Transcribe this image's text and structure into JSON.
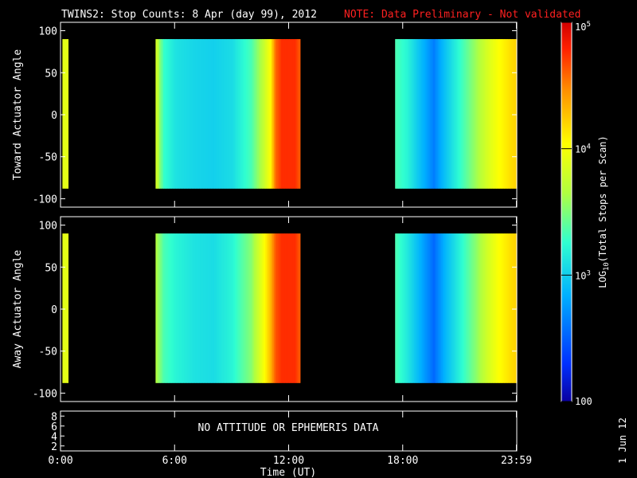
{
  "header": {
    "title": "TWINS2: Stop Counts:  8 Apr (day  99), 2012",
    "note": "NOTE: Data Preliminary - Not validated"
  },
  "footer": {
    "date_stamp": "1 Jun 12"
  },
  "colors": {
    "background": "#000000",
    "axes": "#ffffff",
    "note": "#ff2020",
    "colormap": [
      "#0a00a0",
      "#0030ff",
      "#00b0ff",
      "#30ffd0",
      "#b0ff40",
      "#ffff00",
      "#ff9000",
      "#ff2000",
      "#d00000"
    ]
  },
  "chart_data": [
    {
      "type": "heatmap",
      "title": "TWINS2: Stop Counts:  8 Apr (day  99), 2012",
      "ylabel": "Toward Actuator Angle",
      "xlabel": "",
      "xlim": [
        0,
        24
      ],
      "ylim": [
        -110,
        110
      ],
      "yticks": [
        "100",
        "50",
        "0",
        "-50",
        "-100"
      ],
      "ytick_values": [
        100,
        50,
        0,
        -50,
        -100
      ],
      "data_y_range": [
        -88,
        90
      ],
      "blocks": [
        {
          "x_start": 0.1,
          "x_end": 0.42,
          "log_level": 0.58
        },
        {
          "x_start": 5.0,
          "x_end": 12.6,
          "profile": [
            {
              "x": 5.0,
              "level": 0.55
            },
            {
              "x": 5.2,
              "level": 0.45
            },
            {
              "x": 5.4,
              "level": 0.38
            },
            {
              "x": 6.0,
              "level": 0.33
            },
            {
              "x": 7.0,
              "level": 0.31
            },
            {
              "x": 8.0,
              "level": 0.3
            },
            {
              "x": 9.0,
              "level": 0.32
            },
            {
              "x": 10.0,
              "level": 0.4
            },
            {
              "x": 10.6,
              "level": 0.52
            },
            {
              "x": 11.0,
              "level": 0.62
            },
            {
              "x": 11.3,
              "level": 0.8
            },
            {
              "x": 11.6,
              "level": 0.86
            },
            {
              "x": 12.3,
              "level": 0.86
            },
            {
              "x": 12.6,
              "level": 0.8
            }
          ]
        },
        {
          "x_start": 17.6,
          "x_end": 24.0,
          "profile": [
            {
              "x": 17.6,
              "level": 0.4
            },
            {
              "x": 18.2,
              "level": 0.36
            },
            {
              "x": 19.0,
              "level": 0.26
            },
            {
              "x": 19.6,
              "level": 0.2
            },
            {
              "x": 20.2,
              "level": 0.28
            },
            {
              "x": 21.0,
              "level": 0.38
            },
            {
              "x": 21.8,
              "level": 0.48
            },
            {
              "x": 22.4,
              "level": 0.56
            },
            {
              "x": 23.0,
              "level": 0.62
            },
            {
              "x": 23.6,
              "level": 0.66
            },
            {
              "x": 24.0,
              "level": 0.68
            }
          ]
        }
      ]
    },
    {
      "type": "heatmap",
      "ylabel": "Away Actuator Angle",
      "xlabel": "",
      "xlim": [
        0,
        24
      ],
      "ylim": [
        -110,
        110
      ],
      "yticks": [
        "100",
        "50",
        "0",
        "-50",
        "-100"
      ],
      "ytick_values": [
        100,
        50,
        0,
        -50,
        -100
      ],
      "data_y_range": [
        -88,
        90
      ],
      "blocks": [
        {
          "x_start": 0.1,
          "x_end": 0.42,
          "log_level": 0.58
        },
        {
          "x_start": 5.0,
          "x_end": 12.6,
          "profile": [
            {
              "x": 5.0,
              "level": 0.5
            },
            {
              "x": 5.4,
              "level": 0.4
            },
            {
              "x": 6.0,
              "level": 0.36
            },
            {
              "x": 7.0,
              "level": 0.33
            },
            {
              "x": 8.0,
              "level": 0.32
            },
            {
              "x": 9.0,
              "level": 0.36
            },
            {
              "x": 10.0,
              "level": 0.46
            },
            {
              "x": 10.6,
              "level": 0.6
            },
            {
              "x": 11.0,
              "level": 0.7
            },
            {
              "x": 11.3,
              "level": 0.82
            },
            {
              "x": 11.6,
              "level": 0.86
            },
            {
              "x": 12.3,
              "level": 0.86
            },
            {
              "x": 12.6,
              "level": 0.8
            }
          ]
        },
        {
          "x_start": 17.6,
          "x_end": 24.0,
          "profile": [
            {
              "x": 17.6,
              "level": 0.4
            },
            {
              "x": 18.2,
              "level": 0.34
            },
            {
              "x": 19.0,
              "level": 0.24
            },
            {
              "x": 19.6,
              "level": 0.18
            },
            {
              "x": 20.2,
              "level": 0.26
            },
            {
              "x": 21.0,
              "level": 0.36
            },
            {
              "x": 21.8,
              "level": 0.46
            },
            {
              "x": 22.4,
              "level": 0.55
            },
            {
              "x": 23.0,
              "level": 0.62
            },
            {
              "x": 23.6,
              "level": 0.66
            },
            {
              "x": 24.0,
              "level": 0.68
            }
          ]
        }
      ]
    },
    {
      "type": "table",
      "xlabel": "Time (UT)",
      "xlim": [
        0,
        24
      ],
      "xticks": [
        "0:00",
        "6:00",
        "12:00",
        "18:00",
        "23:59"
      ],
      "xtick_values": [
        0,
        6,
        12,
        18,
        23.98
      ],
      "yticks": [
        "8",
        "6",
        "4",
        "2"
      ],
      "ytick_values": [
        8,
        6,
        4,
        2
      ],
      "ylim": [
        1,
        9
      ],
      "message": "NO ATTITUDE OR EPHEMERIS DATA"
    }
  ],
  "colorbar": {
    "label": "LOG10(Total Stops per Scan)",
    "label_main": "LOG",
    "label_sub": "10",
    "label_rest": "(Total Stops per Scan)",
    "scale": "log",
    "range": [
      100,
      100000
    ],
    "ticks": [
      {
        "value": 100000,
        "base": "10",
        "exp": "5"
      },
      {
        "value": 10000,
        "base": "10",
        "exp": "4"
      },
      {
        "value": 1000,
        "base": "10",
        "exp": "3"
      },
      {
        "value": 100,
        "base": "100",
        "exp": ""
      }
    ]
  }
}
